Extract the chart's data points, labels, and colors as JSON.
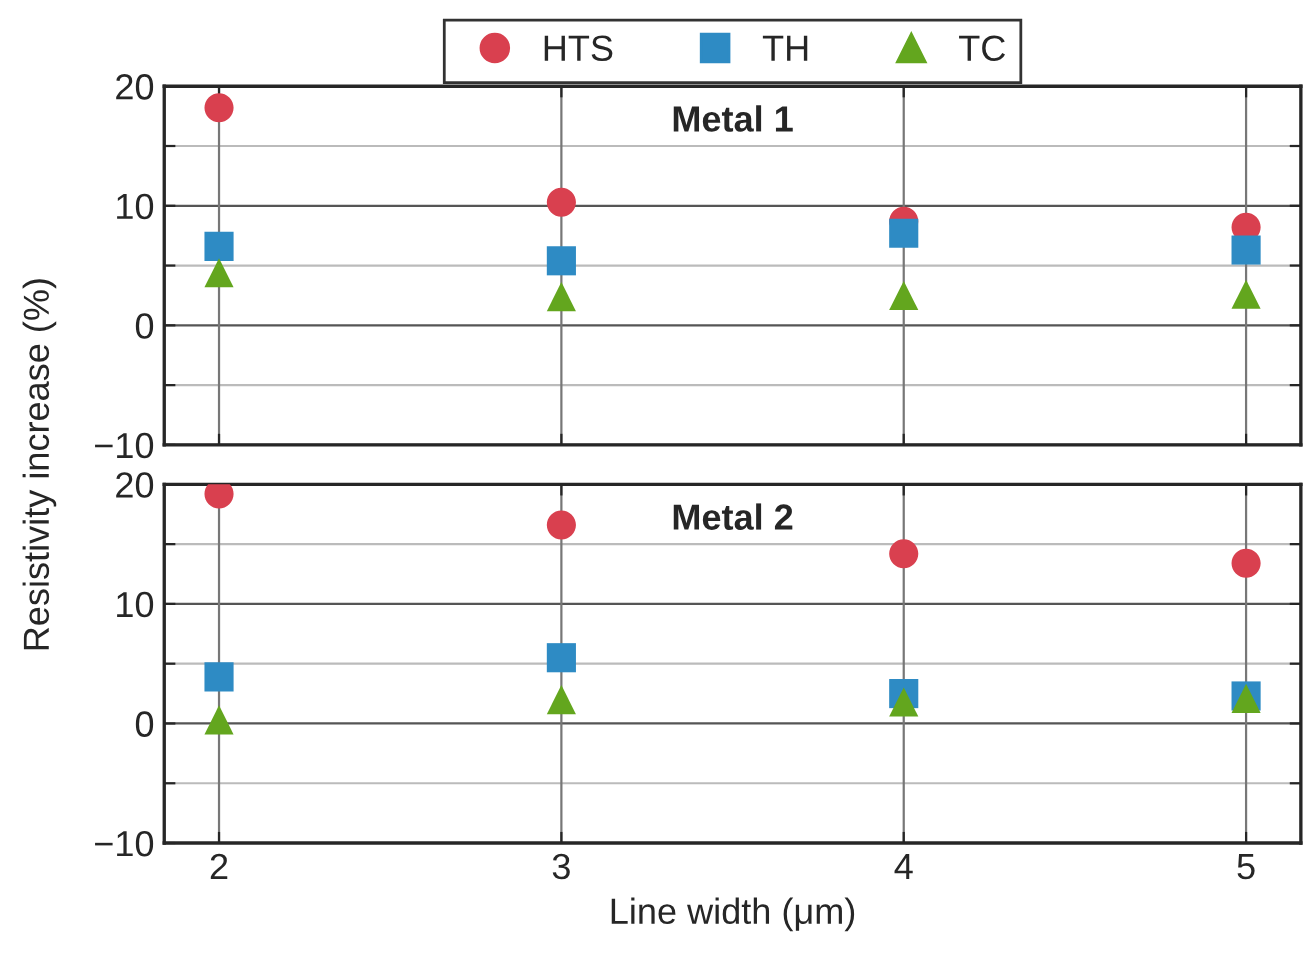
{
  "chart_data": [
    {
      "type": "scatter",
      "title": "Metal 1",
      "ylabel": "Resistivity increase (%)",
      "x": [
        2,
        3,
        4,
        5
      ],
      "series": [
        {
          "name": "HTS",
          "color": "#d9404f",
          "marker": "circle",
          "values": [
            18.2,
            10.3,
            8.7,
            8.2
          ]
        },
        {
          "name": "TH",
          "color": "#2e8bc4",
          "marker": "square",
          "values": [
            6.6,
            5.4,
            7.7,
            6.3
          ]
        },
        {
          "name": "TC",
          "color": "#63a61e",
          "marker": "triangle",
          "values": [
            4.4,
            2.4,
            2.5,
            2.6
          ]
        }
      ],
      "xlim": [
        1.84,
        5.16
      ],
      "xticks": [
        2,
        3,
        4,
        5
      ],
      "ylim": [
        -10,
        20
      ],
      "yticks": [
        {
          "value": -10,
          "label": "−10"
        },
        {
          "value": -5,
          "label": null
        },
        0,
        {
          "value": 5,
          "label": null
        },
        10,
        {
          "value": 15,
          "label": null
        },
        20
      ],
      "grid": true,
      "legend": "top",
      "tick_labels": "y"
    },
    {
      "type": "scatter",
      "title": "Metal 2",
      "xlabel": "Line width (μm)",
      "x": [
        2,
        3,
        4,
        5
      ],
      "series": [
        {
          "color": "#d9404f",
          "marker": "circle",
          "values": [
            19.2,
            16.6,
            14.2,
            13.4
          ]
        },
        {
          "color": "#2e8bc4",
          "marker": "square",
          "values": [
            3.9,
            5.5,
            2.5,
            2.3
          ]
        },
        {
          "color": "#63a61e",
          "marker": "triangle",
          "values": [
            0.3,
            2.0,
            1.8,
            2.1
          ]
        }
      ],
      "xlim": [
        1.84,
        5.16
      ],
      "xticks": [
        2,
        3,
        4,
        5
      ],
      "ylim": [
        -10,
        20
      ],
      "yticks": [
        {
          "value": -10,
          "label": "−10"
        },
        {
          "value": -5,
          "label": null
        },
        0,
        {
          "value": 5,
          "label": null
        },
        10,
        {
          "value": 15,
          "label": null
        },
        20
      ],
      "grid": true
    }
  ]
}
